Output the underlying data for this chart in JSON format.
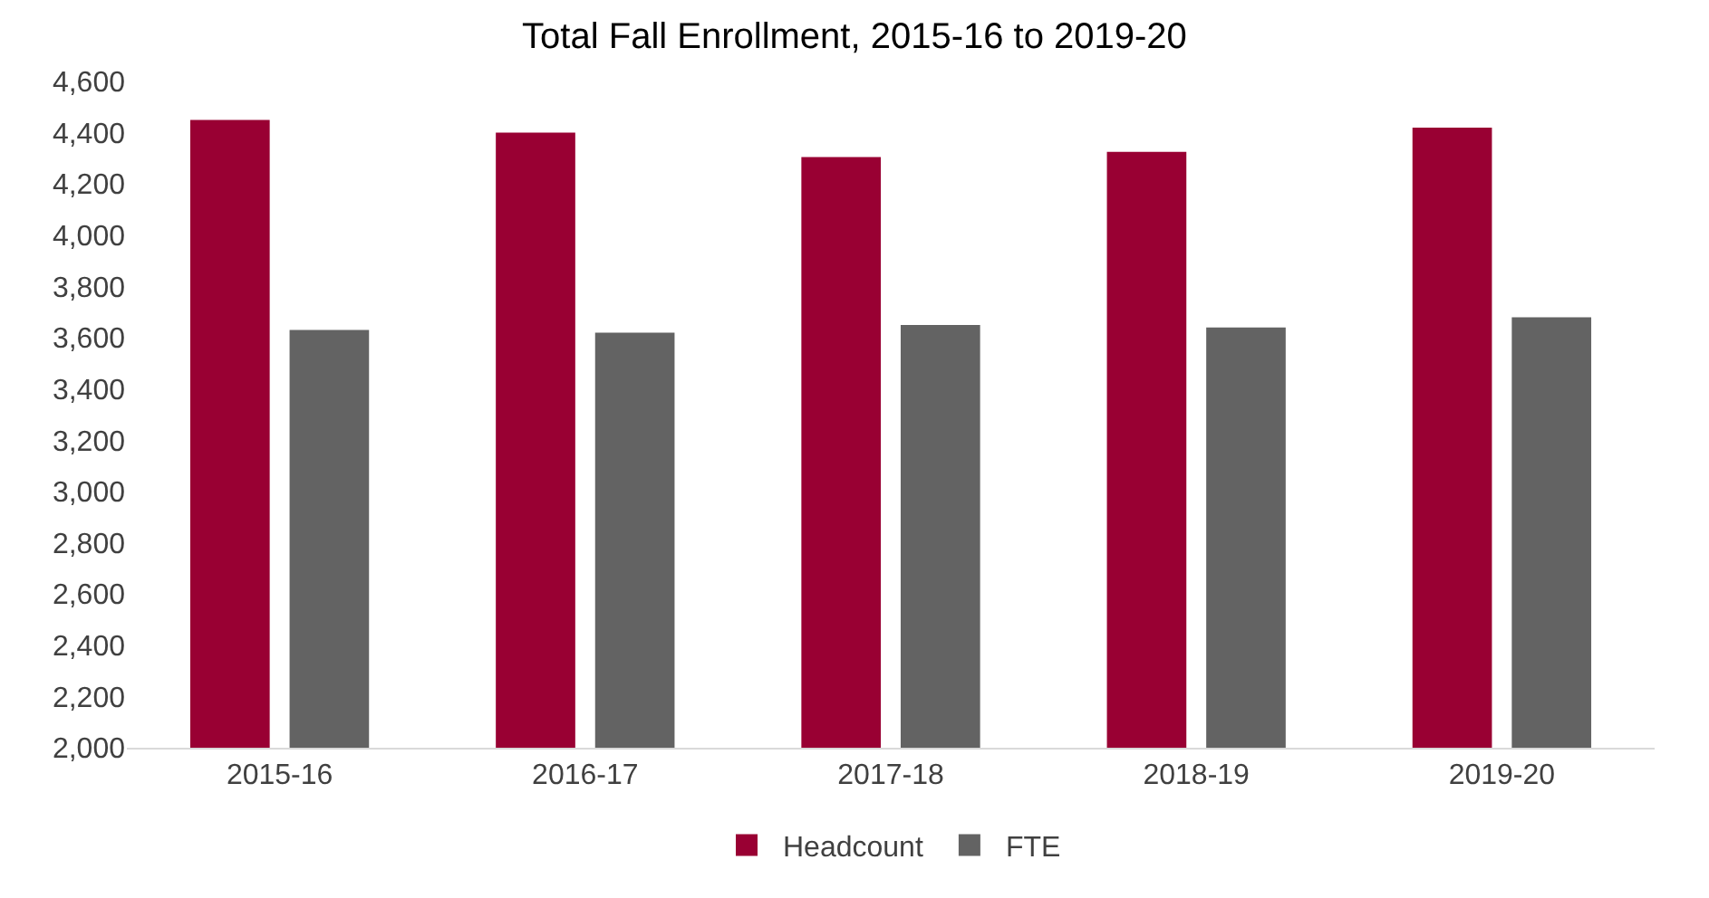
{
  "chart_data": {
    "type": "bar",
    "title": "Total Fall Enrollment, 2015-16 to 2019-20",
    "categories": [
      "2015-16",
      "2016-17",
      "2017-18",
      "2018-19",
      "2019-20"
    ],
    "series": [
      {
        "name": "Headcount",
        "color": "#990033",
        "values": [
          4450,
          4400,
          4305,
          4325,
          4420
        ]
      },
      {
        "name": "FTE",
        "color": "#636363",
        "values": [
          3630,
          3620,
          3650,
          3640,
          3680
        ]
      }
    ],
    "ylim": [
      2000,
      4600
    ],
    "yticks": [
      {
        "value": 2000,
        "label": "2,000"
      },
      {
        "value": 2200,
        "label": "2,200"
      },
      {
        "value": 2400,
        "label": "2,400"
      },
      {
        "value": 2600,
        "label": "2,600"
      },
      {
        "value": 2800,
        "label": "2,800"
      },
      {
        "value": 3000,
        "label": "3,000"
      },
      {
        "value": 3200,
        "label": "3,200"
      },
      {
        "value": 3400,
        "label": "3,400"
      },
      {
        "value": 3600,
        "label": "3,600"
      },
      {
        "value": 3800,
        "label": "3,800"
      },
      {
        "value": 4000,
        "label": "4,000"
      },
      {
        "value": 4200,
        "label": "4,200"
      },
      {
        "value": 4400,
        "label": "4,400"
      },
      {
        "value": 4600,
        "label": "4,600"
      }
    ],
    "grid": false,
    "legend": "bottom"
  }
}
